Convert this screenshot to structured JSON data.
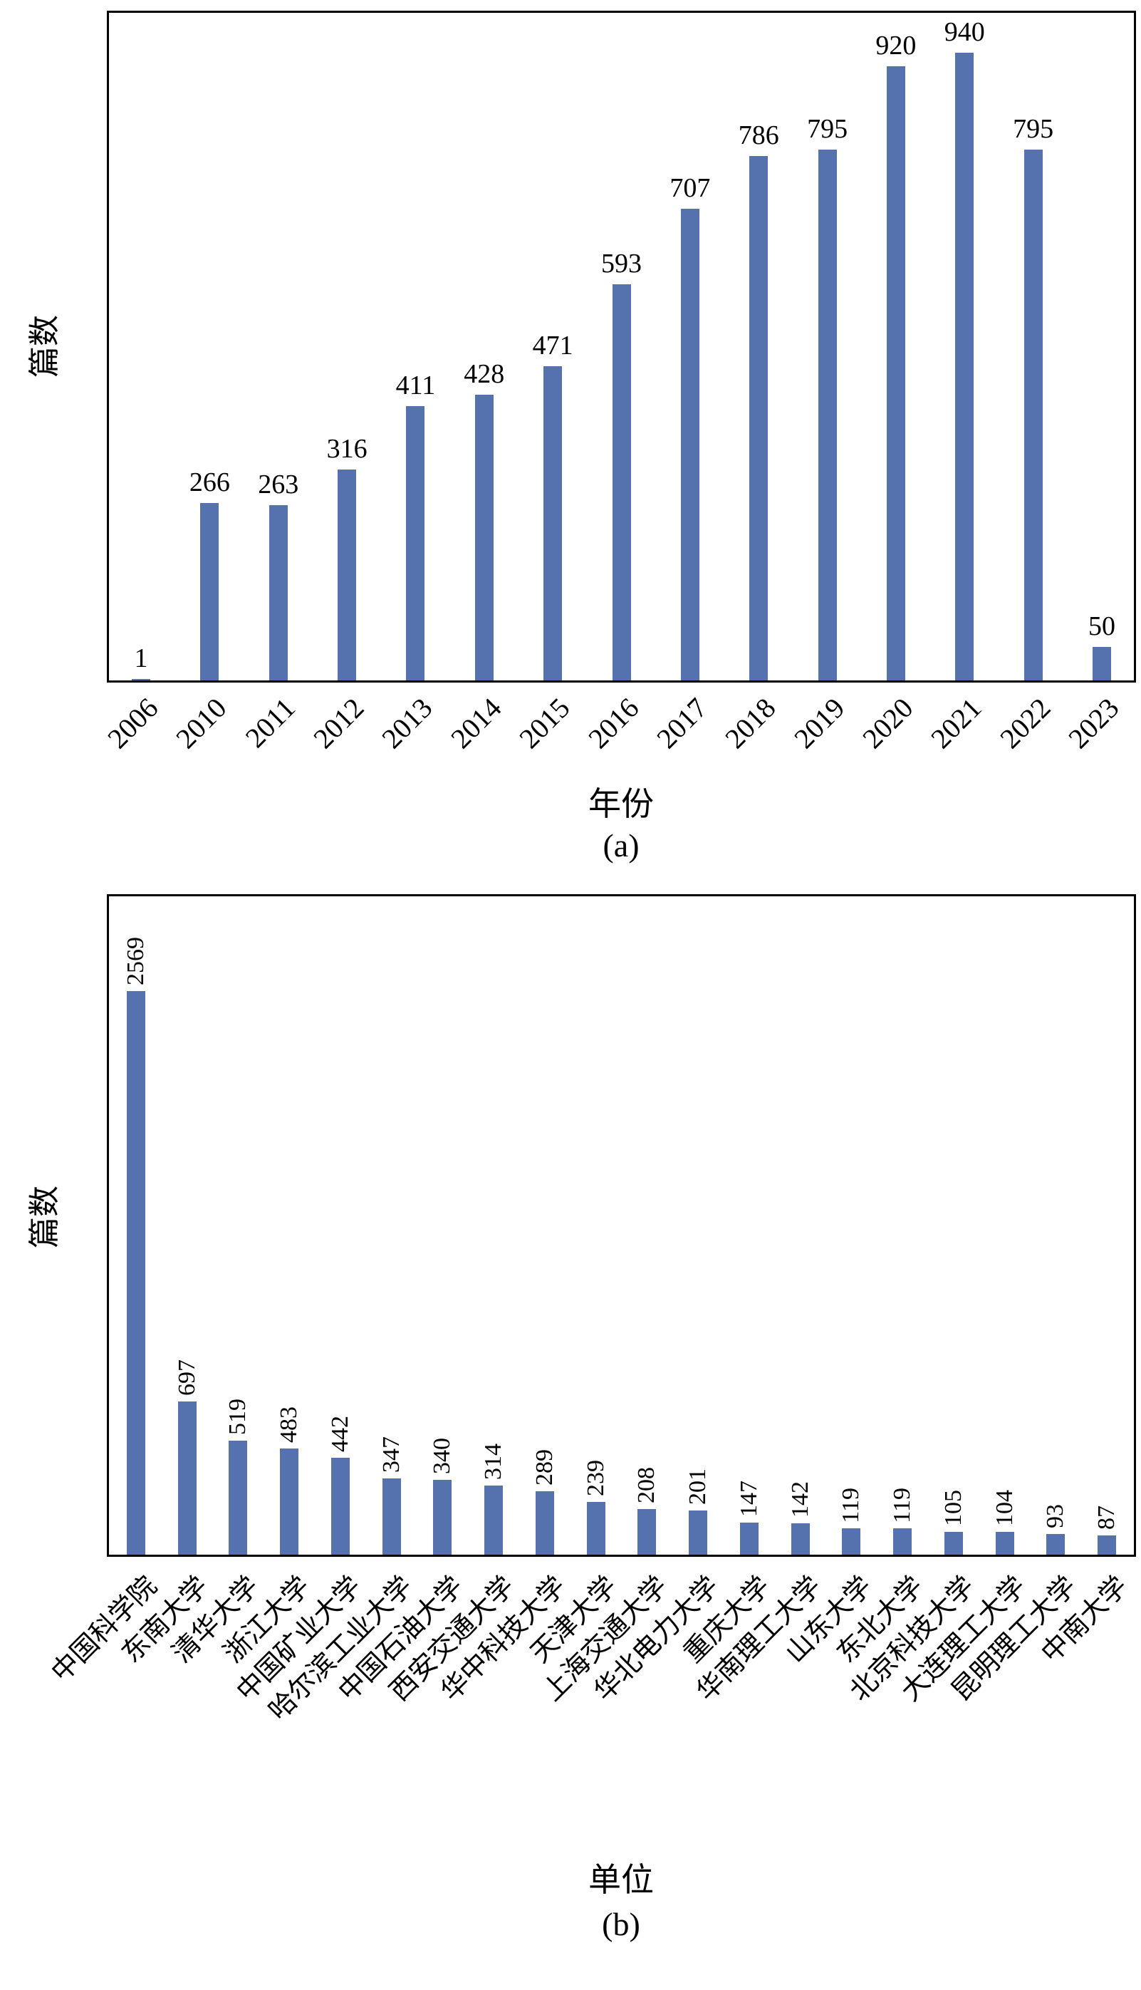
{
  "colors": {
    "bar": "#5672ae",
    "text": "#000000",
    "background": "#ffffff"
  },
  "chart_data": [
    {
      "id": "chart-a",
      "type": "bar",
      "caption": "(a)",
      "xlabel": "年份",
      "ylabel": "篇数",
      "bar_color": "#5672ae",
      "grid": false,
      "legend": "none",
      "tick_rotation": 45,
      "value_label_rotation": 0,
      "ylim": [
        0,
        1000
      ],
      "categories": [
        "2006",
        "2010",
        "2011",
        "2012",
        "2013",
        "2014",
        "2015",
        "2016",
        "2017",
        "2018",
        "2019",
        "2020",
        "2021",
        "2022",
        "2023"
      ],
      "values": [
        1,
        266,
        263,
        316,
        411,
        428,
        471,
        593,
        707,
        786,
        795,
        920,
        940,
        795,
        50
      ]
    },
    {
      "id": "chart-b",
      "type": "bar",
      "caption": "(b)",
      "xlabel": "单位",
      "ylabel": "篇数",
      "bar_color": "#5672ae",
      "grid": false,
      "legend": "none",
      "tick_rotation": 45,
      "value_label_rotation": 90,
      "ylim": [
        0,
        3000
      ],
      "categories": [
        "中国科学院",
        "东南大学",
        "清华大学",
        "浙江大学",
        "中国矿业大学",
        "哈尔滨工业大学",
        "中国石油大学",
        "西安交通大学",
        "华中科技大学",
        "天津大学",
        "上海交通大学",
        "华北电力大学",
        "重庆大学",
        "华南理工大学",
        "山东大学",
        "东北大学",
        "北京科技大学",
        "大连理工大学",
        "昆明理工大学",
        "中南大学"
      ],
      "values": [
        2569,
        697,
        519,
        483,
        442,
        347,
        340,
        314,
        289,
        239,
        208,
        201,
        147,
        142,
        119,
        119,
        105,
        104,
        93,
        87
      ]
    }
  ]
}
